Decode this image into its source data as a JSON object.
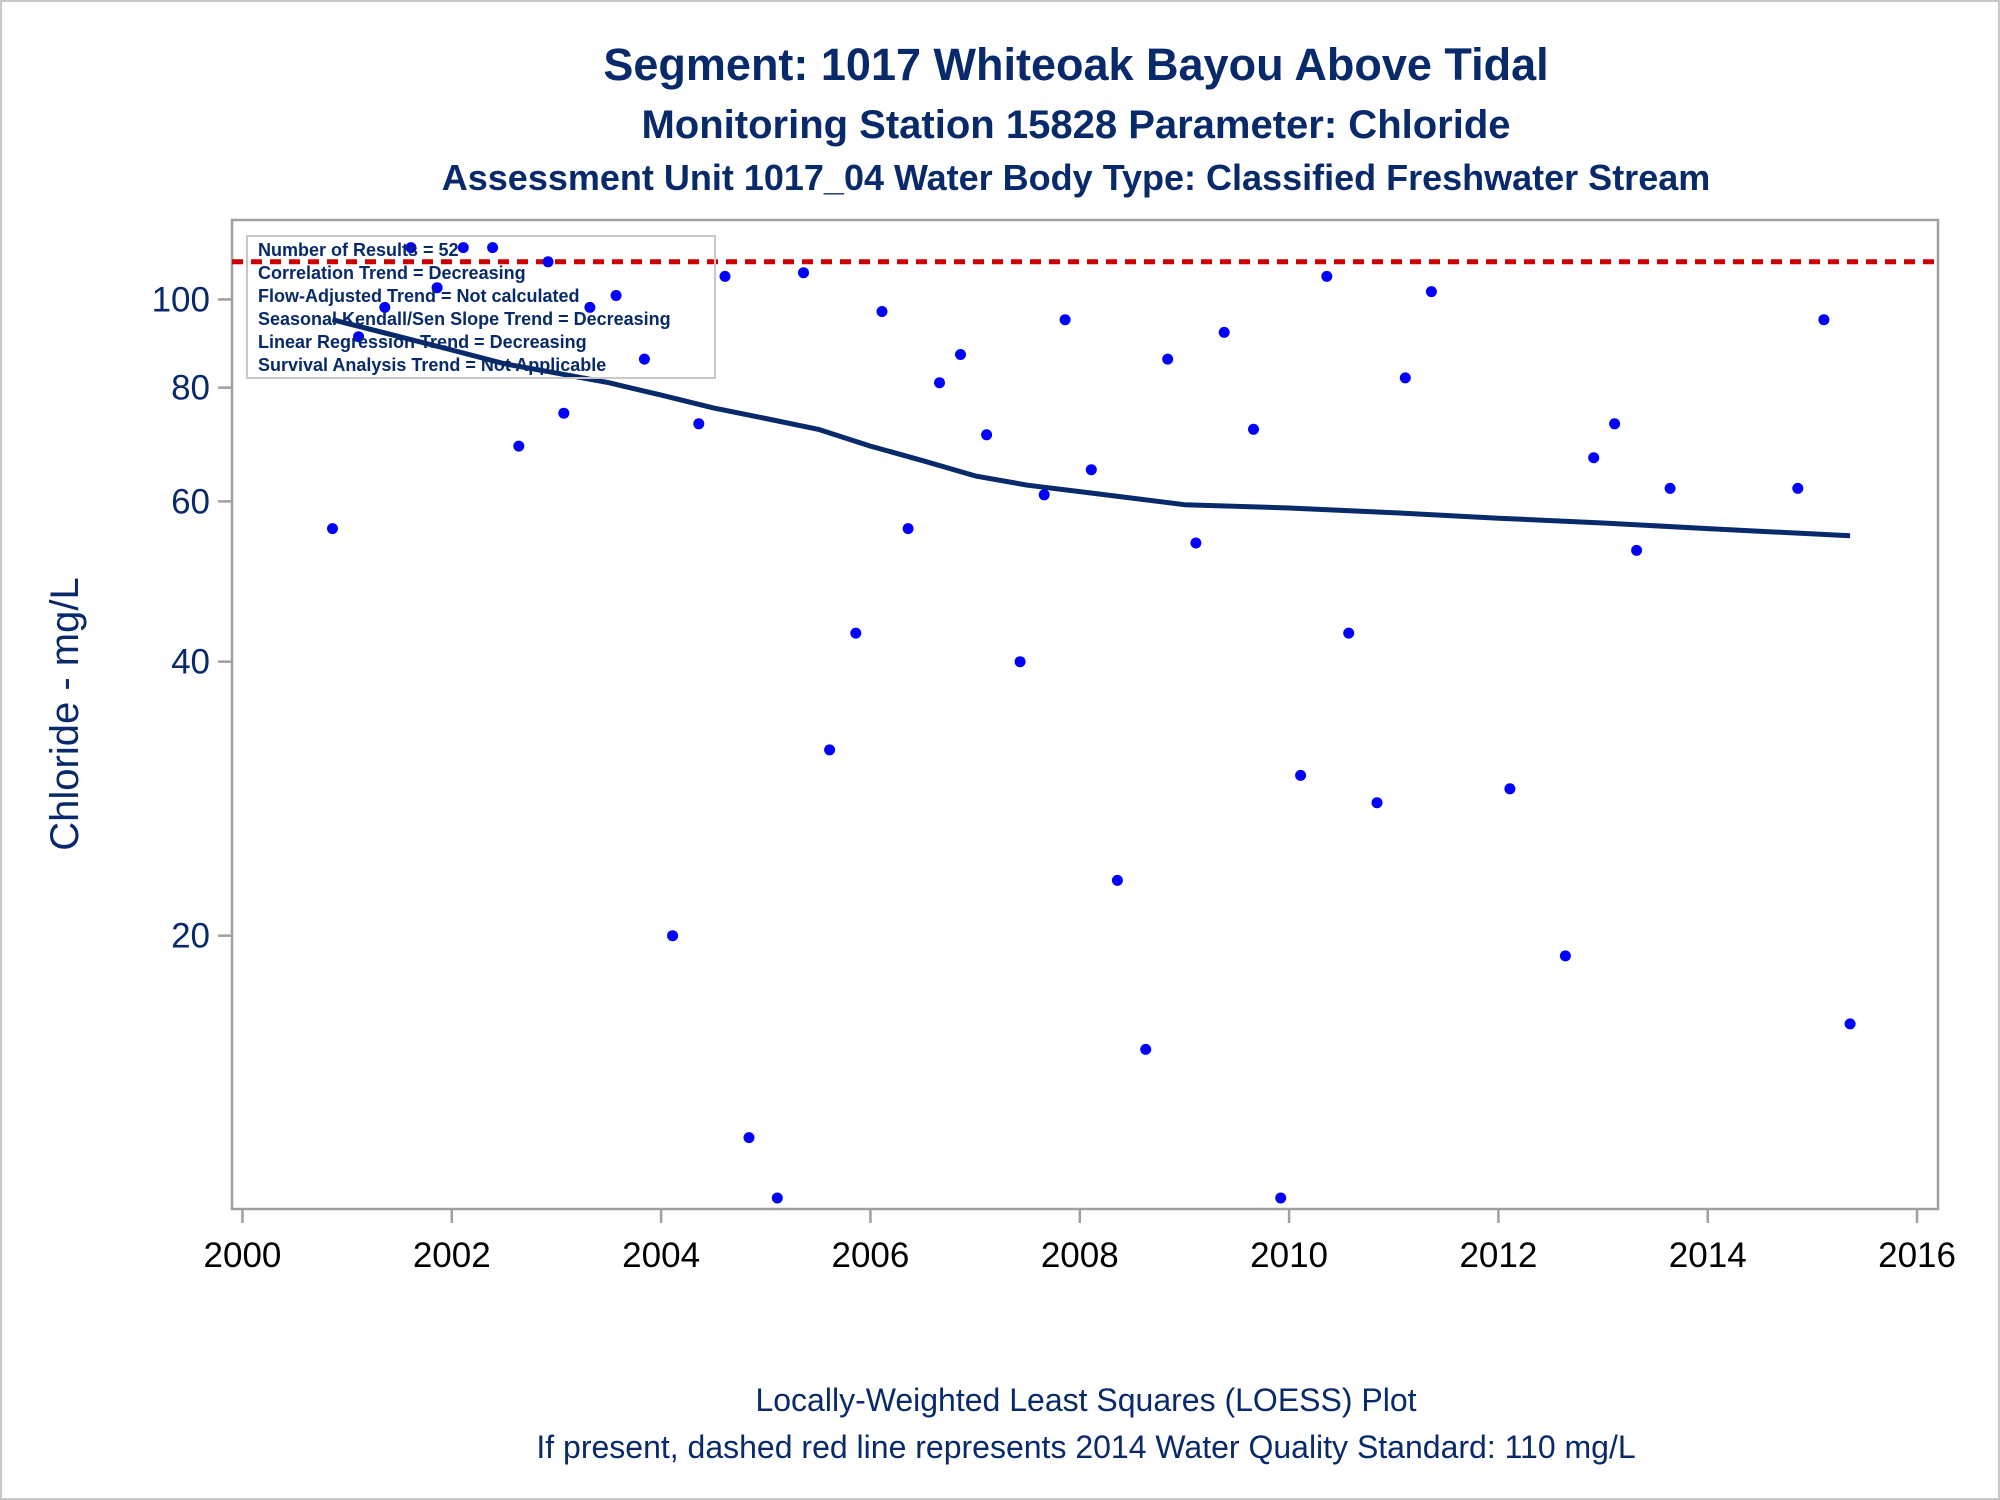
{
  "titles": {
    "line1": "Segment: 1017  Whiteoak Bayou Above Tidal",
    "line2": "Monitoring Station 15828 Parameter: Chloride",
    "line3": "Assessment Unit 1017_04   Water Body Type: Classified Freshwater Stream"
  },
  "footnotes": {
    "line1": "Locally-Weighted Least Squares (LOESS) Plot",
    "line2": "If present, dashed red line represents 2014 Water Quality Standard: 110    mg/L"
  },
  "inset_lines": [
    "Number of Results = 52",
    "Correlation Trend = Decreasing",
    "Flow-Adjusted Trend = Not calculated",
    "Seasonal Kendall/Sen Slope Trend = Decreasing",
    "Linear Regression Trend = Decreasing",
    "Survival Analysis Trend = Not Applicable"
  ],
  "colors": {
    "title": "#082a6b",
    "points": "#0000ff",
    "loess": "#082a6b",
    "standard_line": "#cc0000",
    "axis": "#a0a0a0"
  },
  "chart_data": {
    "type": "scatter",
    "title": "Segment: 1017  Whiteoak Bayou Above Tidal",
    "xlabel": "",
    "ylabel": "Chloride - mg/L",
    "y_scale": "log",
    "xlim": [
      1999.9,
      2016.2
    ],
    "ylim": [
      10.3,
      118
    ],
    "x_ticks": [
      2000,
      2002,
      2004,
      2006,
      2008,
      2010,
      2012,
      2014,
      2016
    ],
    "y_ticks": [
      20,
      40,
      60,
      80,
      100
    ],
    "grid": false,
    "standard": {
      "value": 110,
      "style": "dashed"
    },
    "points": [
      {
        "x": 2000.86,
        "y": 56
      },
      {
        "x": 2001.11,
        "y": 91
      },
      {
        "x": 2001.36,
        "y": 98
      },
      {
        "x": 2001.61,
        "y": 114
      },
      {
        "x": 2001.86,
        "y": 103
      },
      {
        "x": 2002.11,
        "y": 114
      },
      {
        "x": 2002.39,
        "y": 114
      },
      {
        "x": 2002.64,
        "y": 69
      },
      {
        "x": 2002.92,
        "y": 110
      },
      {
        "x": 2003.07,
        "y": 75
      },
      {
        "x": 2003.32,
        "y": 98
      },
      {
        "x": 2003.57,
        "y": 101
      },
      {
        "x": 2003.84,
        "y": 86
      },
      {
        "x": 2004.11,
        "y": 20
      },
      {
        "x": 2004.36,
        "y": 73
      },
      {
        "x": 2004.61,
        "y": 106
      },
      {
        "x": 2004.84,
        "y": 12
      },
      {
        "x": 2005.11,
        "y": 10.3
      },
      {
        "x": 2005.36,
        "y": 107
      },
      {
        "x": 2005.61,
        "y": 32
      },
      {
        "x": 2005.86,
        "y": 43
      },
      {
        "x": 2006.11,
        "y": 97
      },
      {
        "x": 2006.36,
        "y": 56
      },
      {
        "x": 2006.66,
        "y": 81
      },
      {
        "x": 2006.86,
        "y": 87
      },
      {
        "x": 2007.11,
        "y": 71
      },
      {
        "x": 2007.43,
        "y": 40
      },
      {
        "x": 2007.66,
        "y": 61
      },
      {
        "x": 2007.86,
        "y": 95
      },
      {
        "x": 2008.11,
        "y": 65
      },
      {
        "x": 2008.36,
        "y": 23
      },
      {
        "x": 2008.63,
        "y": 15
      },
      {
        "x": 2008.84,
        "y": 86
      },
      {
        "x": 2009.11,
        "y": 54
      },
      {
        "x": 2009.38,
        "y": 92
      },
      {
        "x": 2009.66,
        "y": 72
      },
      {
        "x": 2009.92,
        "y": 10.3
      },
      {
        "x": 2010.11,
        "y": 30
      },
      {
        "x": 2010.36,
        "y": 106
      },
      {
        "x": 2010.57,
        "y": 43
      },
      {
        "x": 2010.84,
        "y": 28
      },
      {
        "x": 2011.11,
        "y": 82
      },
      {
        "x": 2011.36,
        "y": 102
      },
      {
        "x": 2012.11,
        "y": 29
      },
      {
        "x": 2012.64,
        "y": 19
      },
      {
        "x": 2012.91,
        "y": 67
      },
      {
        "x": 2013.11,
        "y": 73
      },
      {
        "x": 2013.32,
        "y": 53
      },
      {
        "x": 2013.64,
        "y": 62
      },
      {
        "x": 2014.86,
        "y": 62
      },
      {
        "x": 2015.11,
        "y": 95
      },
      {
        "x": 2015.36,
        "y": 16
      }
    ],
    "loess": [
      {
        "x": 2000.86,
        "y": 95
      },
      {
        "x": 2001.5,
        "y": 91
      },
      {
        "x": 2002.0,
        "y": 88
      },
      {
        "x": 2002.5,
        "y": 85
      },
      {
        "x": 2003.0,
        "y": 83
      },
      {
        "x": 2003.5,
        "y": 81
      },
      {
        "x": 2004.0,
        "y": 78.5
      },
      {
        "x": 2004.5,
        "y": 76
      },
      {
        "x": 2005.0,
        "y": 74
      },
      {
        "x": 2005.5,
        "y": 72
      },
      {
        "x": 2006.0,
        "y": 69
      },
      {
        "x": 2006.5,
        "y": 66.5
      },
      {
        "x": 2007.0,
        "y": 64
      },
      {
        "x": 2007.5,
        "y": 62.5
      },
      {
        "x": 2008.0,
        "y": 61.5
      },
      {
        "x": 2008.5,
        "y": 60.5
      },
      {
        "x": 2009.0,
        "y": 59.5
      },
      {
        "x": 2010.0,
        "y": 59
      },
      {
        "x": 2011.0,
        "y": 58.3
      },
      {
        "x": 2012.0,
        "y": 57.5
      },
      {
        "x": 2013.0,
        "y": 56.8
      },
      {
        "x": 2014.0,
        "y": 56
      },
      {
        "x": 2015.36,
        "y": 55
      }
    ]
  }
}
